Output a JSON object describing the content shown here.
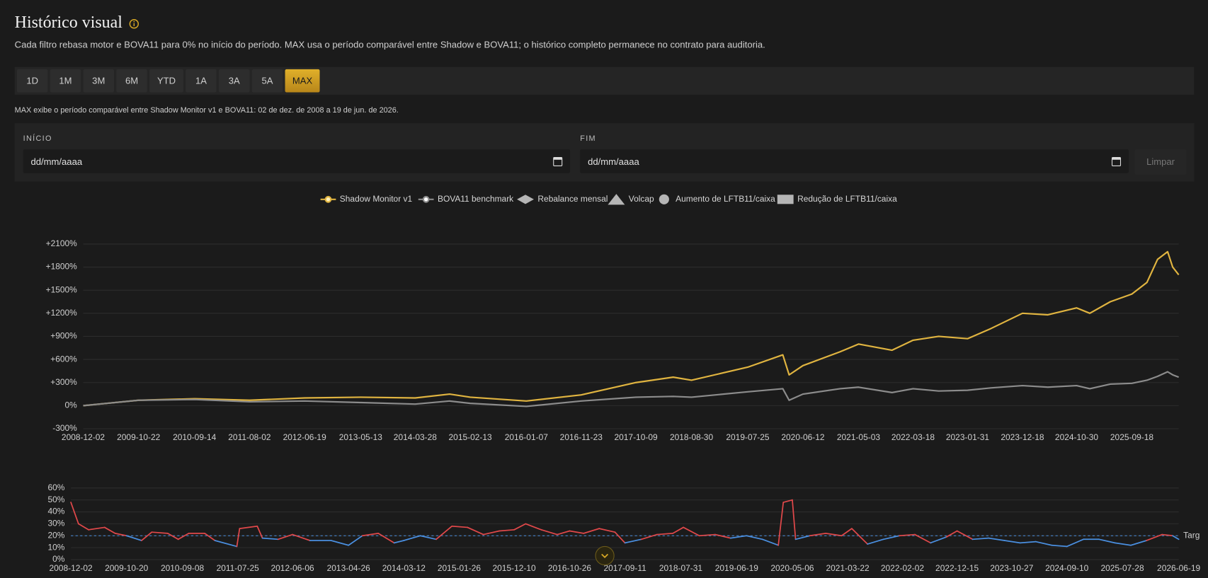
{
  "header": {
    "title": "Histórico visual",
    "subtitle": "Cada filtro rebasa motor e BOVA11 para 0% no início do período. MAX usa o período comparável entre Shadow e BOVA11; o histórico completo permanece no contrato para auditoria."
  },
  "periods": {
    "buttons": [
      "1D",
      "1M",
      "3M",
      "6M",
      "YTD",
      "1A",
      "3A",
      "5A",
      "MAX"
    ],
    "active": "MAX"
  },
  "note": "MAX exibe o período comparável entre Shadow Monitor v1 e BOVA11: 02 de dez. de 2008 a 19 de jun. de 2026.",
  "filters": {
    "start_label": "INÍCIO",
    "start_placeholder": "dd/mm/aaaa",
    "end_label": "FIM",
    "end_placeholder": "dd/mm/aaaa",
    "clear": "Limpar"
  },
  "chart_data": [
    {
      "type": "line",
      "x": [
        "2008-12-02",
        "2009-10-22",
        "2010-09-14",
        "2011-08-02",
        "2012-06-19",
        "2013-05-13",
        "2014-03-28",
        "2014-10-15",
        "2015-02-13",
        "2016-01-07",
        "2016-11-23",
        "2017-10-09",
        "2018-05-15",
        "2018-08-30",
        "2019-07-25",
        "2020-02-15",
        "2020-03-23",
        "2020-06-12",
        "2021-01-15",
        "2021-05-03",
        "2021-11-15",
        "2022-03-18",
        "2022-08-15",
        "2023-01-31",
        "2023-06-15",
        "2023-12-18",
        "2024-05-15",
        "2024-10-30",
        "2025-01-15",
        "2025-05-15",
        "2025-09-18",
        "2025-12-15",
        "2026-02-15",
        "2026-04-15",
        "2026-05-15",
        "2026-06-19"
      ],
      "series": [
        {
          "name": "Shadow Monitor v1",
          "color": "#e0b440",
          "values": [
            0,
            70,
            90,
            70,
            100,
            110,
            100,
            150,
            110,
            60,
            140,
            300,
            370,
            330,
            500,
            660,
            400,
            520,
            700,
            800,
            720,
            850,
            900,
            870,
            1000,
            1200,
            1180,
            1270,
            1200,
            1350,
            1450,
            1600,
            1900,
            2000,
            1800,
            1700
          ]
        },
        {
          "name": "BOVA11 benchmark",
          "color": "#8c8c8c",
          "values": [
            0,
            70,
            80,
            50,
            60,
            40,
            20,
            60,
            30,
            -10,
            60,
            110,
            120,
            110,
            180,
            220,
            70,
            150,
            220,
            240,
            170,
            220,
            190,
            200,
            230,
            260,
            240,
            260,
            220,
            280,
            290,
            330,
            380,
            440,
            400,
            370
          ]
        }
      ],
      "markers": [
        {
          "name": "Rebalance mensal",
          "shape": "diamond"
        },
        {
          "name": "Volcap",
          "shape": "triangle"
        },
        {
          "name": "Aumento de LFTB11/caixa",
          "shape": "circle"
        },
        {
          "name": "Redução de LFTB11/caixa",
          "shape": "square"
        }
      ],
      "xlim": [
        "2008-12-02",
        "2026-06-19"
      ],
      "xticks": [
        "2008-12-02",
        "2009-10-22",
        "2010-09-14",
        "2011-08-02",
        "2012-06-19",
        "2013-05-13",
        "2014-03-28",
        "2015-02-13",
        "2016-01-07",
        "2016-11-23",
        "2017-10-09",
        "2018-08-30",
        "2019-07-25",
        "2020-06-12",
        "2021-05-03",
        "2022-03-18",
        "2023-01-31",
        "2023-12-18",
        "2024-10-30",
        "2025-09-18"
      ],
      "ylim": [
        -300,
        2100
      ],
      "yticks": [
        {
          "value": -300,
          "label": "-300%"
        },
        {
          "value": 0,
          "label": "0%"
        },
        {
          "value": 300,
          "label": "+300%"
        },
        {
          "value": 600,
          "label": "+600%"
        },
        {
          "value": 900,
          "label": "+900%"
        },
        {
          "value": 1200,
          "label": "+1200%"
        },
        {
          "value": 1500,
          "label": "+1500%"
        },
        {
          "value": 1800,
          "label": "+1800%"
        },
        {
          "value": 2100,
          "label": "+2100%"
        }
      ],
      "grid": true
    },
    {
      "type": "line",
      "x": [
        "2008-12-02",
        "2009-01-15",
        "2009-03-15",
        "2009-06-15",
        "2009-08-15",
        "2009-10-20",
        "2010-01-15",
        "2010-03-15",
        "2010-06-15",
        "2010-08-15",
        "2010-10-15",
        "2011-01-15",
        "2011-03-15",
        "2011-07-20",
        "2011-08-05",
        "2011-11-15",
        "2011-12-15",
        "2012-03-15",
        "2012-06-06",
        "2012-09-15",
        "2013-01-15",
        "2013-04-26",
        "2013-07-15",
        "2013-10-15",
        "2014-01-15",
        "2014-03-12",
        "2014-06-15",
        "2014-09-15",
        "2014-12-15",
        "2015-03-15",
        "2015-06-15",
        "2015-09-15",
        "2015-12-10",
        "2016-02-15",
        "2016-05-15",
        "2016-08-15",
        "2016-10-26",
        "2017-01-15",
        "2017-04-15",
        "2017-07-15",
        "2017-09-11",
        "2017-12-15",
        "2018-03-15",
        "2018-06-15",
        "2018-08-15",
        "2018-11-15",
        "2019-02-15",
        "2019-05-15",
        "2019-08-15",
        "2019-11-15",
        "2020-02-15",
        "2020-03-15",
        "2020-05-06",
        "2020-05-25",
        "2020-08-15",
        "2020-11-15",
        "2021-02-15",
        "2021-04-15",
        "2021-07-15",
        "2021-10-15",
        "2022-01-15",
        "2022-04-15",
        "2022-07-15",
        "2022-10-15",
        "2022-12-15",
        "2023-03-15",
        "2023-06-15",
        "2023-09-15",
        "2023-12-15",
        "2024-03-15",
        "2024-06-15",
        "2024-09-10",
        "2024-12-15",
        "2025-03-15",
        "2025-06-15",
        "2025-09-15",
        "2025-12-15",
        "2026-03-15",
        "2026-05-15",
        "2026-06-19"
      ],
      "values": [
        48,
        30,
        25,
        27,
        22,
        20,
        16,
        23,
        22,
        17,
        22,
        22,
        16,
        11,
        26,
        28,
        18,
        17,
        21,
        16,
        16,
        12,
        20,
        22,
        14,
        16,
        20,
        17,
        28,
        27,
        21,
        24,
        25,
        30,
        25,
        21,
        24,
        22,
        26,
        23,
        14,
        17,
        21,
        22,
        27,
        20,
        21,
        18,
        20,
        17,
        12,
        48,
        50,
        17,
        20,
        22,
        20,
        26,
        13,
        17,
        20,
        21,
        14,
        19,
        24,
        17,
        18,
        16,
        14,
        15,
        12,
        11,
        17,
        17,
        14,
        12,
        16,
        21,
        20,
        17
      ],
      "threshold": 20,
      "threshold_label": "Targ",
      "color_above": "#e0484a",
      "color_below": "#4a8fe0",
      "xlim": [
        "2008-12-02",
        "2026-06-19"
      ],
      "xticks": [
        "2008-12-02",
        "2009-10-20",
        "2010-09-08",
        "2011-07-25",
        "2012-06-06",
        "2013-04-26",
        "2014-03-12",
        "2015-01-26",
        "2015-12-10",
        "2016-10-26",
        "2017-09-11",
        "2018-07-31",
        "2019-06-19",
        "2020-05-06",
        "2021-03-22",
        "2022-02-02",
        "2022-12-15",
        "2023-10-27",
        "2024-09-10",
        "2025-07-28",
        "2026-06-19"
      ],
      "ylim": [
        0,
        60
      ],
      "yticks": [
        {
          "value": 0,
          "label": "0%"
        },
        {
          "value": 10,
          "label": "10%"
        },
        {
          "value": 20,
          "label": "20%"
        },
        {
          "value": 30,
          "label": "30%"
        },
        {
          "value": 40,
          "label": "40%"
        },
        {
          "value": 50,
          "label": "50%"
        },
        {
          "value": 60,
          "label": "60%"
        }
      ],
      "grid": true
    }
  ]
}
